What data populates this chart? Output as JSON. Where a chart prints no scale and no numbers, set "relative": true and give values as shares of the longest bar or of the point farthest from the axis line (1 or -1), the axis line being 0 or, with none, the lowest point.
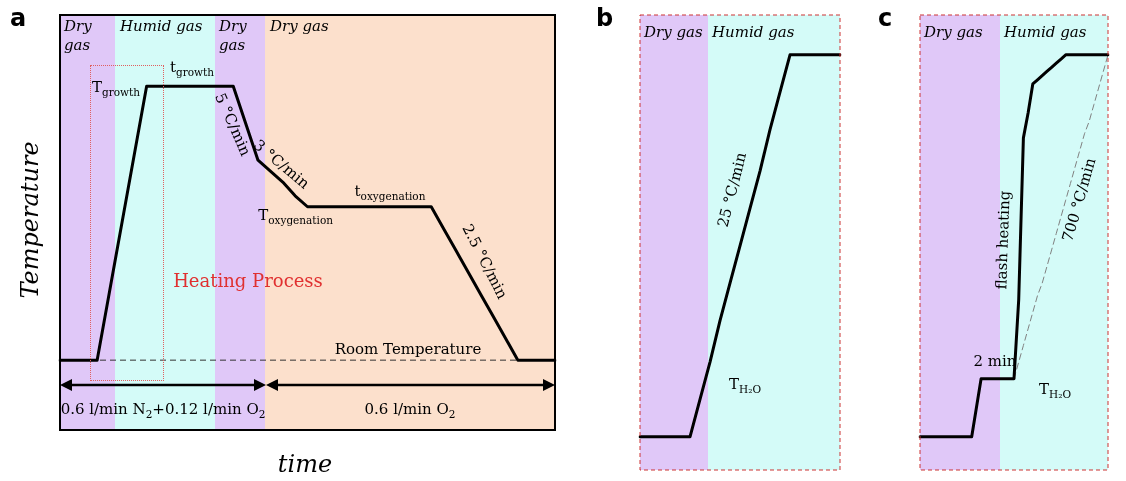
{
  "chart_data": [
    {
      "type": "line",
      "title": "a",
      "xlabel": "time",
      "ylabel": "Temperature",
      "relative": true,
      "marker": "none",
      "line_style": "solid",
      "categories": [
        null,
        null,
        null,
        null,
        null,
        null,
        null,
        null,
        null,
        null,
        null,
        null,
        null,
        null,
        null,
        null,
        null,
        null,
        null,
        null,
        null,
        null,
        null,
        null,
        null,
        null,
        null,
        null,
        null,
        null,
        null,
        null,
        null,
        null,
        null,
        null,
        null,
        null,
        null,
        null,
        null
      ],
      "series": [
        {
          "color": "#000000",
          "values": [
            0,
            0,
            0,
            0,
            0.25,
            0.5,
            0.75,
            1,
            1,
            1,
            1,
            1,
            1,
            1,
            1,
            0.865,
            0.73,
            0.69,
            0.65,
            0.6,
            0.56,
            0.56,
            0.56,
            0.56,
            0.56,
            0.56,
            0.56,
            0.56,
            0.56,
            0.56,
            0.56,
            0.48,
            0.4,
            0.32,
            0.24,
            0.16,
            0.08,
            0,
            0,
            0,
            0
          ]
        }
      ],
      "ref_lines": [
        {
          "axis": "y",
          "value": 0,
          "label": "Room Temperature",
          "color": "#333333",
          "line_style": "dashed"
        }
      ],
      "annotations": [
        "Dry gas",
        "Humid gas",
        "Dry gas",
        "Dry gas",
        "T$_{growth}$",
        "t$_{growth}$",
        "5 °C/min",
        "3 °C/min",
        "T$_{oxygenation}$",
        "t$_{oxygenation}$",
        "2.5 °C/min",
        "Heating Process",
        "0.6 l/min N$_{2}$+0.12 l/min O$_{2}$",
        "0.6 l/min O$_{2}$"
      ]
    },
    {
      "type": "line",
      "title": "b",
      "relative": true,
      "marker": "none",
      "line_style": "solid",
      "categories": [
        null,
        null,
        null,
        null,
        null,
        null,
        null,
        null,
        null,
        null,
        null,
        null,
        null,
        null,
        null,
        null,
        null,
        null,
        null,
        null,
        null
      ],
      "series": [
        {
          "color": "#000000",
          "values": [
            0.08,
            0.08,
            0.08,
            0.08,
            0.08,
            0.08,
            0.17,
            0.26,
            0.36,
            0.45,
            0.54,
            0.63,
            0.72,
            0.82,
            0.91,
            1,
            1,
            1,
            1,
            1,
            1
          ]
        }
      ],
      "annotations": [
        "Dry gas",
        "Humid gas",
        "T$_{H₂O}$",
        "25 °C/min"
      ]
    },
    {
      "type": "line",
      "title": "c",
      "relative": true,
      "marker": "none",
      "categories": [
        null,
        null,
        null,
        null,
        null,
        null,
        null,
        null,
        null,
        null,
        null,
        null,
        null,
        null,
        null,
        null,
        null,
        null,
        null,
        null,
        null,
        null,
        null,
        null,
        null,
        null,
        null,
        null,
        null,
        null,
        null,
        null,
        null,
        null,
        null,
        null,
        null,
        null,
        null,
        null,
        null
      ],
      "series": [
        {
          "color": "#000000",
          "line_style": "solid",
          "values": [
            0.08,
            0.08,
            0.08,
            0.08,
            0.08,
            0.08,
            0.08,
            0.08,
            0.08,
            0.08,
            0.08,
            0.08,
            0.15,
            0.22,
            0.22,
            0.22,
            0.22,
            0.22,
            0.22,
            0.22,
            0.22,
            0.41,
            0.8,
            0.86,
            0.93,
            0.94,
            0.95,
            0.96,
            0.97,
            0.98,
            0.99,
            1,
            1,
            1,
            1,
            1,
            1,
            1,
            1,
            1,
            1
          ]
        },
        {
          "color": "#808080",
          "line_style": "dashed",
          "values": [
            null,
            null,
            null,
            null,
            null,
            null,
            null,
            null,
            null,
            null,
            null,
            null,
            null,
            null,
            null,
            null,
            null,
            null,
            null,
            null,
            0.22,
            0.26,
            0.3,
            0.34,
            0.38,
            0.42,
            0.45,
            0.49,
            0.53,
            0.57,
            0.61,
            0.65,
            0.69,
            0.73,
            0.77,
            0.81,
            0.84,
            0.88,
            0.92,
            0.96,
            1
          ]
        }
      ],
      "annotations": [
        "Dry gas",
        "Humid gas",
        "2 min",
        "T$_{H₂O}$",
        "flash heating",
        "700 °C/min"
      ]
    }
  ]
}
